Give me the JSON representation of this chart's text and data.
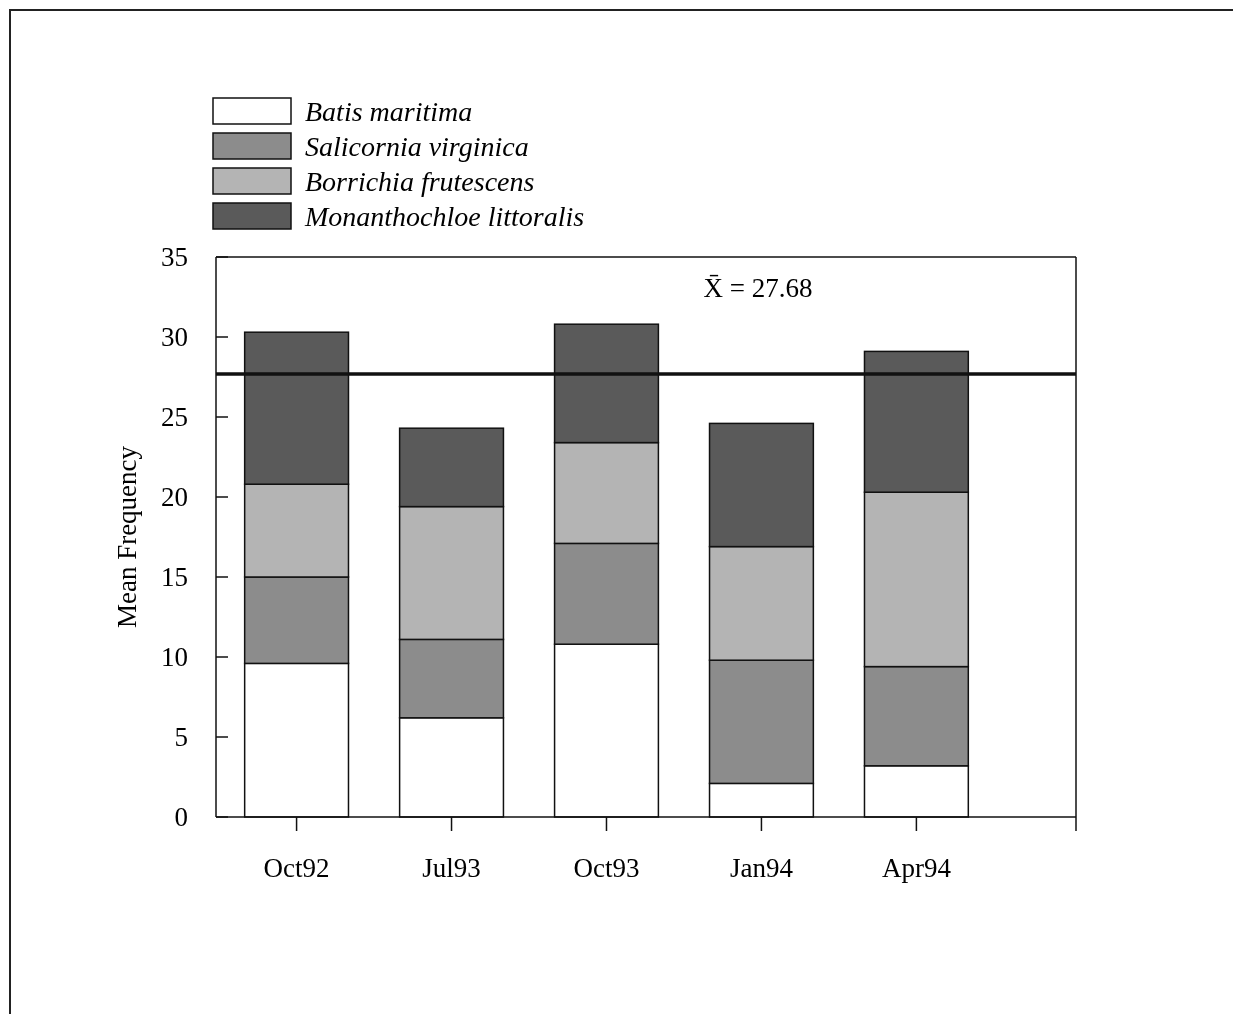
{
  "chart_data": {
    "type": "bar",
    "stacked": true,
    "ylabel": "Mean Frequency",
    "categories": [
      "Oct92",
      "Jul93",
      "Oct93",
      "Jan94",
      "Apr94"
    ],
    "series": [
      {
        "name": "Batis maritima",
        "color": "#ffffff",
        "values": [
          9.6,
          6.2,
          10.8,
          2.1,
          3.2
        ]
      },
      {
        "name": "Salicornia virginica",
        "color": "#8c8c8c",
        "values": [
          5.4,
          4.9,
          6.3,
          7.7,
          6.2
        ]
      },
      {
        "name": "Borrichia frutescens",
        "color": "#b4b4b4",
        "values": [
          5.8,
          8.3,
          6.3,
          7.1,
          10.9
        ]
      },
      {
        "name": "Monanthochloe littoralis",
        "color": "#5a5a5a",
        "values": [
          9.5,
          4.9,
          7.4,
          7.7,
          8.8
        ]
      }
    ],
    "ylim": [
      0,
      35
    ],
    "yticks": [
      0,
      5,
      10,
      15,
      20,
      25,
      30,
      35
    ],
    "grid": false,
    "legend": "top left",
    "ref_lines": [
      {
        "axis": "y",
        "value": 27.68,
        "label": "X̄ = 27.68",
        "color": "#111111",
        "line_style": "solid"
      }
    ]
  }
}
